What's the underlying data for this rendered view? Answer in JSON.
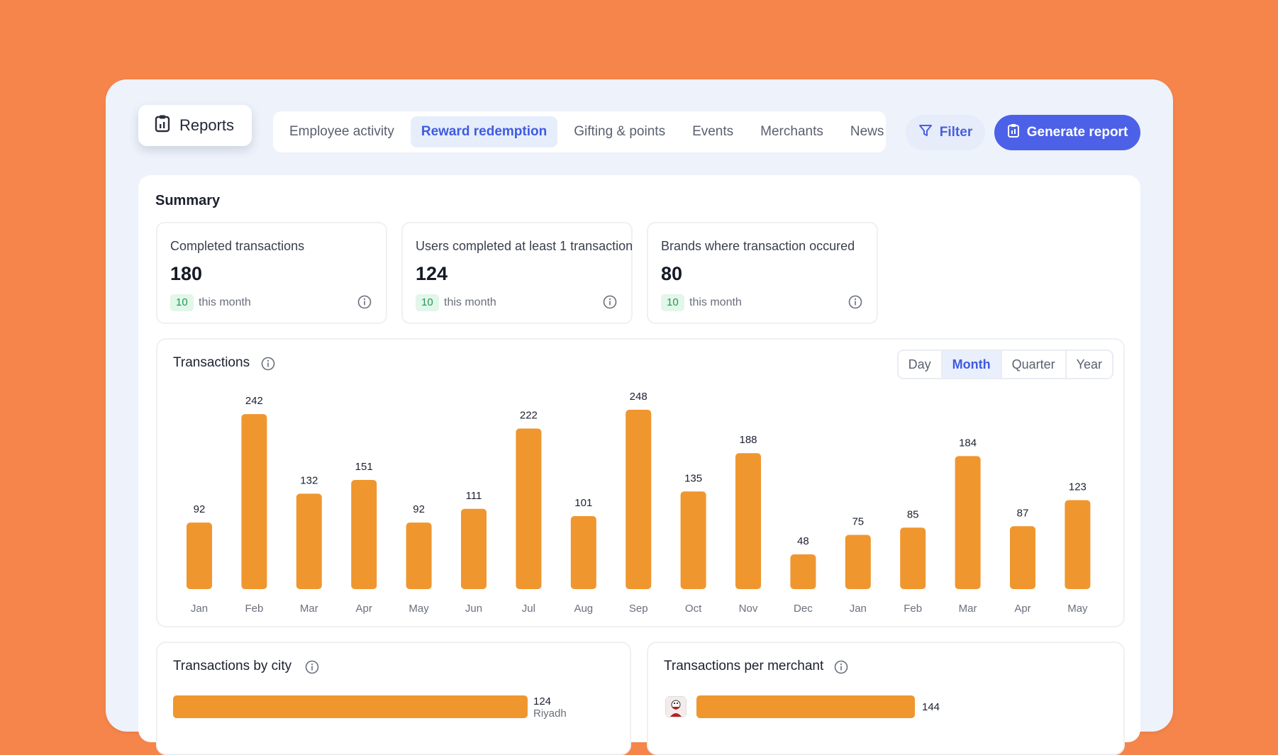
{
  "header": {
    "reports_label": "Reports",
    "tabs": [
      {
        "label": "Employee activity",
        "active": false
      },
      {
        "label": "Reward redemption",
        "active": true
      },
      {
        "label": "Gifting & points",
        "active": false
      },
      {
        "label": "Events",
        "active": false
      },
      {
        "label": "Merchants",
        "active": false
      },
      {
        "label": "News",
        "active": false
      }
    ],
    "filter_label": "Filter",
    "generate_label": "Generate report"
  },
  "summary": {
    "title": "Summary",
    "cards": [
      {
        "label": "Completed transactions",
        "value": "180",
        "badge": "10",
        "sub": "this month"
      },
      {
        "label": "Users completed at least 1 transaction",
        "value": "124",
        "badge": "10",
        "sub": "this month"
      },
      {
        "label": "Brands where transaction occured",
        "value": "80",
        "badge": "10",
        "sub": "this month"
      }
    ]
  },
  "transactions": {
    "title": "Transactions",
    "periods": [
      {
        "label": "Day",
        "active": false
      },
      {
        "label": "Month",
        "active": true
      },
      {
        "label": "Quarter",
        "active": false
      },
      {
        "label": "Year",
        "active": false
      }
    ]
  },
  "chart_data": {
    "type": "bar",
    "categories": [
      "Jan",
      "Feb",
      "Mar",
      "Apr",
      "May",
      "Jun",
      "Jul",
      "Aug",
      "Sep",
      "Oct",
      "Nov",
      "Dec",
      "Jan",
      "Feb",
      "Mar",
      "Apr",
      "May"
    ],
    "values": [
      92,
      242,
      132,
      151,
      92,
      111,
      222,
      101,
      248,
      135,
      188,
      48,
      75,
      85,
      184,
      87,
      123
    ],
    "color": "#F0962E",
    "grid": false
  },
  "by_city": {
    "title": "Transactions by city",
    "items": [
      {
        "name": "Riyadh",
        "value": "124",
        "fraction": 1.0
      }
    ]
  },
  "per_merchant": {
    "title": "Transactions per merchant",
    "items": [
      {
        "value": "144",
        "fraction": 1.0,
        "logo": "kfc-logo-icon"
      }
    ]
  },
  "colors": {
    "background": "#F5854A",
    "accent": "#4C61E8",
    "bar": "#F0962E",
    "badge_bg": "#E2F6E9",
    "badge_text": "#1E9A55"
  }
}
